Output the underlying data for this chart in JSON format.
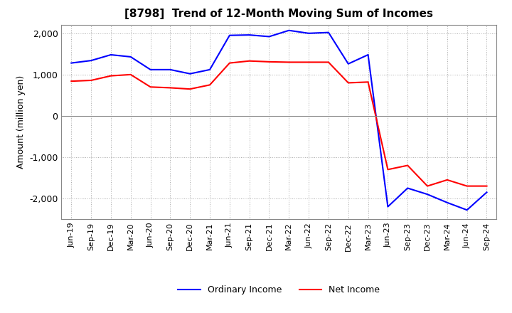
{
  "title": "[8798]  Trend of 12-Month Moving Sum of Incomes",
  "ylabel": "Amount (million yen)",
  "ylim": [
    -2500,
    2200
  ],
  "yticks": [
    -2000,
    -1000,
    0,
    1000,
    2000
  ],
  "background_color": "#ffffff",
  "grid_color": "#aaaaaa",
  "ordinary_income_color": "#0000ff",
  "net_income_color": "#ff0000",
  "dates": [
    "Jun-19",
    "Sep-19",
    "Dec-19",
    "Mar-20",
    "Jun-20",
    "Sep-20",
    "Dec-20",
    "Mar-21",
    "Jun-21",
    "Sep-21",
    "Dec-21",
    "Mar-22",
    "Jun-22",
    "Sep-22",
    "Dec-22",
    "Mar-23",
    "Jun-23",
    "Sep-23",
    "Dec-23",
    "Mar-24",
    "Jun-24",
    "Sep-24"
  ],
  "ordinary_income": [
    1280,
    1340,
    1480,
    1430,
    1120,
    1120,
    1020,
    1120,
    1950,
    1960,
    1920,
    2070,
    2000,
    2020,
    1260,
    1480,
    -2200,
    -1750,
    -1900,
    -2100,
    -2280,
    -1850
  ],
  "net_income": [
    840,
    860,
    970,
    1000,
    700,
    680,
    650,
    750,
    1280,
    1330,
    1310,
    1300,
    1300,
    1300,
    800,
    820,
    -1300,
    -1200,
    -1700,
    -1550,
    -1700,
    -1700
  ]
}
